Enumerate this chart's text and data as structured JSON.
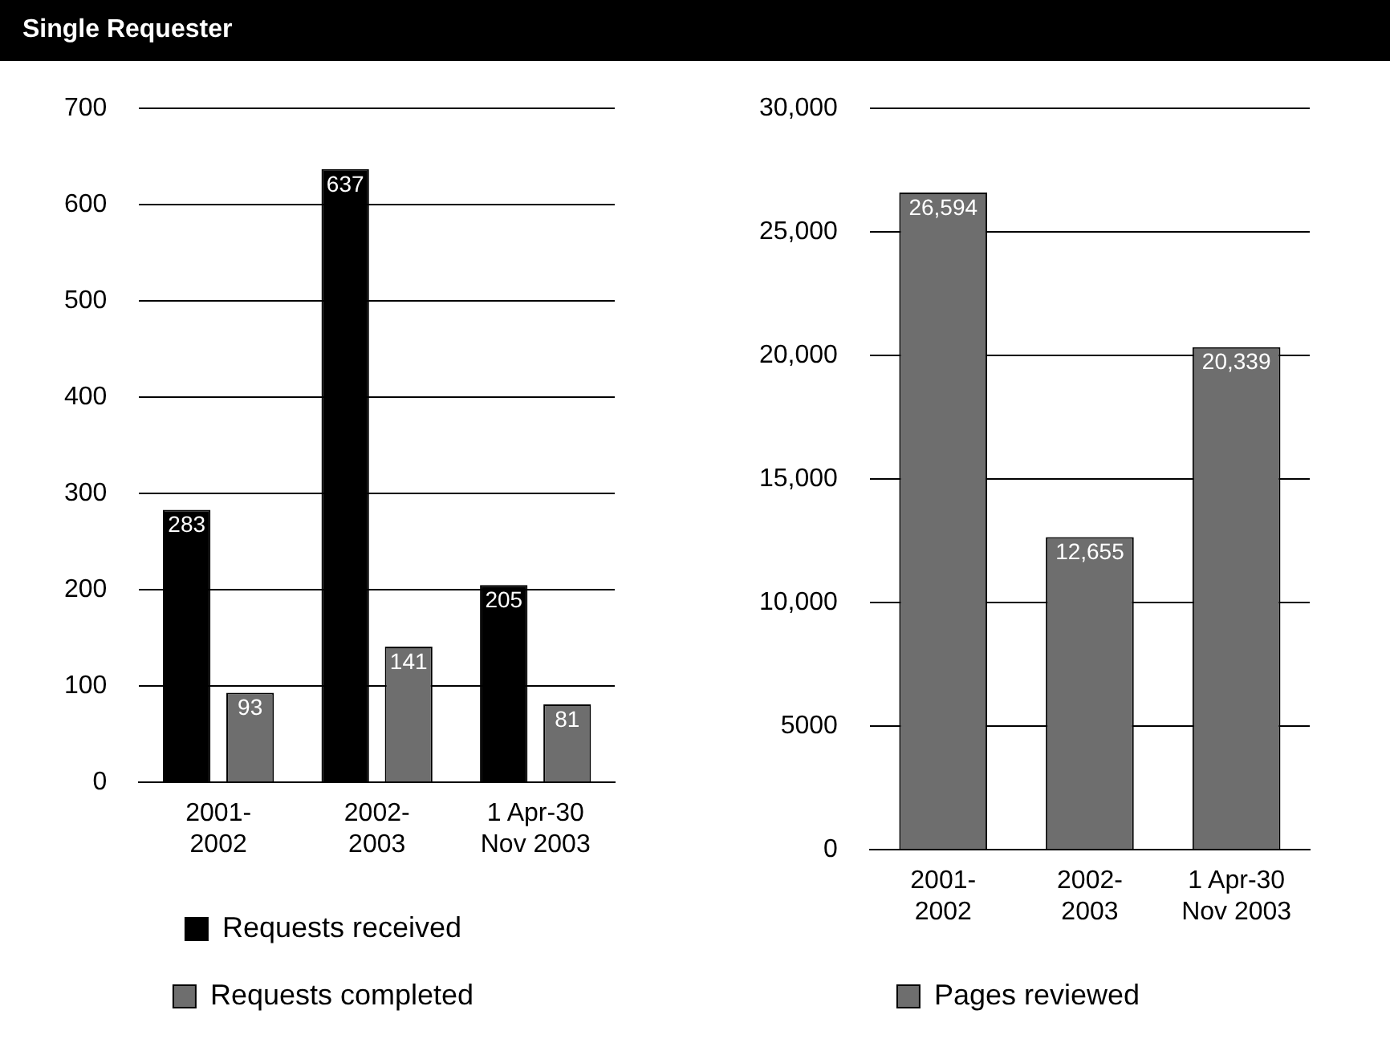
{
  "chart_data": [
    {
      "type": "bar",
      "title": "Single Requester",
      "categories": [
        "2001-2002",
        "2002-2003",
        "1 Apr-30 Nov 2003"
      ],
      "series": [
        {
          "name": "Requests received",
          "color": "#000000",
          "values": [
            283,
            637,
            205
          ]
        },
        {
          "name": "Requests completed",
          "color": "#6e6e6e",
          "values": [
            93,
            141,
            81
          ]
        }
      ],
      "ylim": [
        0,
        700
      ],
      "yticks": [
        0,
        100,
        200,
        300,
        400,
        500,
        600,
        700
      ],
      "grid": "y",
      "legend": "bottom",
      "data_labels": true
    },
    {
      "type": "bar",
      "categories": [
        "2001-2002",
        "2002-2003",
        "1 Apr-30 Nov 2003"
      ],
      "series": [
        {
          "name": "Pages reviewed",
          "color": "#6e6e6e",
          "values": [
            26594,
            12655,
            20339
          ],
          "value_labels": [
            "26,594",
            "12,655",
            "20,339"
          ]
        }
      ],
      "ylim": [
        0,
        30000
      ],
      "yticks": [
        0,
        {
          "value": 5000,
          "label": "5000"
        },
        {
          "value": 10000,
          "label": "10,000"
        },
        {
          "value": 15000,
          "label": "15,000"
        },
        {
          "value": 20000,
          "label": "20,000"
        },
        {
          "value": 25000,
          "label": "25,000"
        },
        {
          "value": 30000,
          "label": "30,000"
        }
      ],
      "grid": "y",
      "legend": "bottom"
    }
  ]
}
